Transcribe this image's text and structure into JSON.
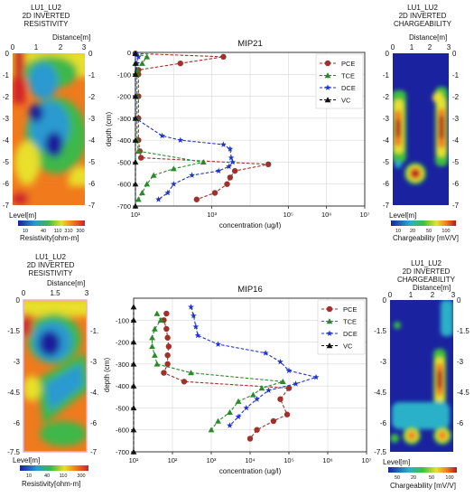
{
  "top": {
    "resistivity": {
      "title1": "LU1_LU2",
      "title2": "2D INVERTED",
      "title3": "RESISTIVITY",
      "distance_label": "Distance[m]",
      "x_ticks": [
        "0",
        "1",
        "2",
        "3"
      ],
      "y_ticks": [
        "0",
        "-1",
        "-2",
        "-3",
        "-4",
        "-5",
        "-6",
        "-7"
      ],
      "level_label": "Level[m]",
      "colorbar_ticks": [
        "10",
        "40",
        "110",
        "310",
        "300"
      ],
      "colorbar_label": "Resistivity[ohm-m]"
    },
    "chargeability": {
      "title1": "LU1_LU2",
      "title2": "2D INVERTED",
      "title3": "CHARGEABILITY",
      "distance_label": "Distance[m]",
      "x_ticks": [
        "0",
        "1",
        "2",
        "3"
      ],
      "y_ticks": [
        "0",
        "-1",
        "-2",
        "-3",
        "-4",
        "-5",
        "-6",
        "-7"
      ],
      "level_label": "Level[m]",
      "colorbar_ticks": [
        "10",
        "20",
        "50",
        "100"
      ],
      "colorbar_label": "Chargeability [mV/V]"
    }
  },
  "bottom": {
    "resistivity": {
      "title1": "LU1_LU2",
      "title2": "2D INVERTED",
      "title3": "RESISTIVITY",
      "distance_label": "Distance[m]",
      "x_ticks": [
        "0",
        "1.5",
        "3"
      ],
      "y_ticks": [
        "0",
        "-1.5",
        "-3",
        "-4.5",
        "-6",
        "-7.5"
      ],
      "right_ticks": [
        "-1.",
        "-3",
        "-4.",
        "-6",
        "-7"
      ],
      "level_label": "Level[m]",
      "colorbar_ticks": [
        "10",
        "40",
        "110",
        "300"
      ],
      "colorbar_label": "Resistivity[ohm-m]"
    },
    "chargeability": {
      "title1": "LU1_LU2",
      "title2": "2D INVERTED",
      "title3": "CHARGEABILITY",
      "distance_label": "Distance[m]",
      "x_ticks": [
        "0",
        "1",
        "2",
        "3"
      ],
      "y_ticks": [
        "0",
        "-1.5",
        "-3",
        "-4.5",
        "-6",
        "-7.5"
      ],
      "level_label": "Level[m]",
      "colorbar_ticks": [
        "50",
        "20",
        "50",
        "100"
      ],
      "colorbar_label": "Chargeability [mV/V]"
    }
  },
  "chart_data": [
    {
      "type": "line",
      "title": "MIP21",
      "xlabel": "concentration (ug/l)",
      "ylabel": "depth (cm)",
      "x_scale": "log",
      "xlim": [
        10,
        10000000
      ],
      "ylim": [
        -700,
        0
      ],
      "x_tick_labels": [
        "10¹",
        "10³",
        "10⁵",
        "10⁶",
        "10⁷"
      ],
      "x_tick_values": [
        10,
        1000,
        100000,
        1000000,
        10000000
      ],
      "y_ticks": [
        0,
        -100,
        -200,
        -300,
        -400,
        -500,
        -600,
        -700
      ],
      "legend_position": "top-right",
      "series": [
        {
          "name": "PCE",
          "color": "#a0302a",
          "marker": "circle",
          "points": [
            [
              10,
              -5
            ],
            [
              2000,
              -20
            ],
            [
              150,
              -50
            ],
            [
              12,
              -80
            ],
            [
              12,
              -100
            ],
            [
              12,
              -200
            ],
            [
              12,
              -300
            ],
            [
              12,
              -400
            ],
            [
              13,
              -450
            ],
            [
              14,
              -480
            ],
            [
              30000,
              -510
            ],
            [
              4000,
              -540
            ],
            [
              3000,
              -570
            ],
            [
              2500,
              -600
            ],
            [
              1200,
              -640
            ],
            [
              400,
              -670
            ]
          ]
        },
        {
          "name": "TCE",
          "color": "#2a8a2a",
          "marker": "triangle",
          "points": [
            [
              10,
              -5
            ],
            [
              20,
              -20
            ],
            [
              15,
              -50
            ],
            [
              11,
              -80
            ],
            [
              11,
              -100
            ],
            [
              11,
              -200
            ],
            [
              11,
              -300
            ],
            [
              11,
              -400
            ],
            [
              12,
              -450
            ],
            [
              600,
              -500
            ],
            [
              100,
              -530
            ],
            [
              30,
              -560
            ],
            [
              20,
              -600
            ],
            [
              15,
              -640
            ],
            [
              12,
              -670
            ]
          ]
        },
        {
          "name": "DCE",
          "color": "#2034c8",
          "marker": "star",
          "points": [
            [
              10,
              -5
            ],
            [
              12,
              -20
            ],
            [
              11,
              -50
            ],
            [
              10,
              -100
            ],
            [
              10,
              -200
            ],
            [
              10,
              -300
            ],
            [
              50,
              -380
            ],
            [
              150,
              -400
            ],
            [
              2000,
              -420
            ],
            [
              3000,
              -440
            ],
            [
              3200,
              -480
            ],
            [
              3500,
              -500
            ],
            [
              2800,
              -520
            ],
            [
              1500,
              -540
            ],
            [
              300,
              -560
            ],
            [
              100,
              -600
            ],
            [
              70,
              -640
            ],
            [
              40,
              -670
            ]
          ]
        },
        {
          "name": "VC",
          "color": "#111111",
          "marker": "triangle",
          "points": [
            [
              10,
              -5
            ],
            [
              10,
              -50
            ],
            [
              10,
              -100
            ],
            [
              10,
              -200
            ],
            [
              10,
              -300
            ],
            [
              10,
              -400
            ],
            [
              10,
              -500
            ],
            [
              10,
              -600
            ],
            [
              10,
              -700
            ]
          ]
        }
      ]
    },
    {
      "type": "line",
      "title": "MIP16",
      "xlabel": "concentration (ug/l)",
      "ylabel": "depth (cm)",
      "x_scale": "log",
      "xlim": [
        10,
        10000000
      ],
      "ylim": [
        -700,
        0
      ],
      "x_tick_labels": [
        "10¹",
        "10²",
        "10³",
        "10⁴",
        "10⁵",
        "10⁶",
        "10⁷"
      ],
      "x_tick_values": [
        10,
        100,
        1000,
        10000,
        100000,
        1000000,
        10000000
      ],
      "y_ticks": [
        -100,
        -200,
        -300,
        -400,
        -500,
        -600,
        -700
      ],
      "legend_position": "top-right",
      "series": [
        {
          "name": "PCE",
          "color": "#a0302a",
          "marker": "circle",
          "points": [
            [
              70,
              -70
            ],
            [
              60,
              -100
            ],
            [
              70,
              -140
            ],
            [
              75,
              -180
            ],
            [
              80,
              -220
            ],
            [
              75,
              -260
            ],
            [
              75,
              -300
            ],
            [
              60,
              -340
            ],
            [
              200,
              -380
            ],
            [
              100000,
              -410
            ],
            [
              60000,
              -460
            ],
            [
              90000,
              -530
            ],
            [
              40000,
              -560
            ],
            [
              15000,
              -600
            ],
            [
              10000,
              -640
            ]
          ]
        },
        {
          "name": "TCE",
          "color": "#2a8a2a",
          "marker": "triangle",
          "points": [
            [
              40,
              -70
            ],
            [
              50,
              -100
            ],
            [
              35,
              -140
            ],
            [
              30,
              -180
            ],
            [
              30,
              -220
            ],
            [
              35,
              -260
            ],
            [
              40,
              -300
            ],
            [
              300,
              -340
            ],
            [
              70000,
              -380
            ],
            [
              20000,
              -410
            ],
            [
              12000,
              -440
            ],
            [
              5000,
              -470
            ],
            [
              3000,
              -520
            ],
            [
              1500,
              -560
            ],
            [
              1000,
              -600
            ]
          ]
        },
        {
          "name": "DCE",
          "color": "#2034c8",
          "marker": "star",
          "points": [
            [
              300,
              -40
            ],
            [
              350,
              -80
            ],
            [
              400,
              -130
            ],
            [
              450,
              -170
            ],
            [
              1500,
              -210
            ],
            [
              25000,
              -250
            ],
            [
              60000,
              -290
            ],
            [
              100000,
              -330
            ],
            [
              500000,
              -360
            ],
            [
              150000,
              -390
            ],
            [
              30000,
              -420
            ],
            [
              15000,
              -460
            ],
            [
              8000,
              -500
            ],
            [
              5000,
              -540
            ],
            [
              3000,
              -580
            ]
          ]
        },
        {
          "name": "VC",
          "color": "#111111",
          "marker": "triangle",
          "points": [
            [
              10,
              -40
            ],
            [
              10,
              -100
            ],
            [
              10,
              -200
            ],
            [
              10,
              -300
            ],
            [
              10,
              -400
            ],
            [
              10,
              -500
            ],
            [
              10,
              -600
            ],
            [
              10,
              -700
            ]
          ]
        }
      ]
    }
  ]
}
